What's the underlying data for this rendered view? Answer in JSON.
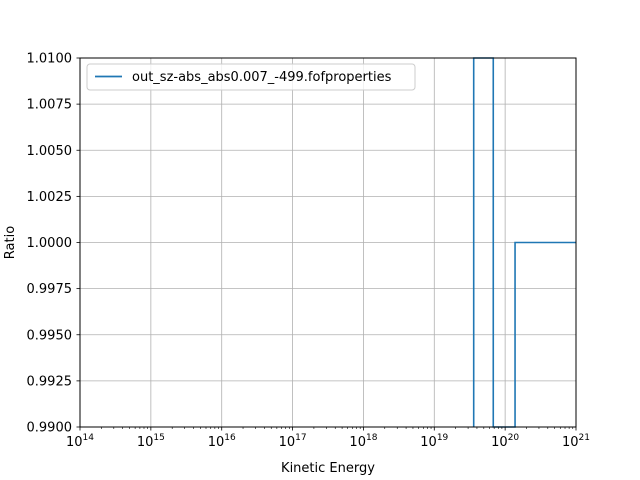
{
  "chart_data": {
    "type": "line",
    "title": "",
    "xlabel": "Kinetic Energy",
    "ylabel": "Ratio",
    "xscale": "log",
    "xlim": [
      100000000000000.0,
      1e+21
    ],
    "ylim": [
      0.99,
      1.01
    ],
    "grid": true,
    "legend_position": "top-left",
    "x_ticks": [
      {
        "value": 100000000000000.0,
        "base": "10",
        "exp": "14"
      },
      {
        "value": 1000000000000000.0,
        "base": "10",
        "exp": "15"
      },
      {
        "value": 1e+16,
        "base": "10",
        "exp": "16"
      },
      {
        "value": 1e+17,
        "base": "10",
        "exp": "17"
      },
      {
        "value": 1e+18,
        "base": "10",
        "exp": "18"
      },
      {
        "value": 1e+19,
        "base": "10",
        "exp": "19"
      },
      {
        "value": 1e+20,
        "base": "10",
        "exp": "20"
      },
      {
        "value": 1e+21,
        "base": "10",
        "exp": "21"
      }
    ],
    "y_ticks": [
      "0.9900",
      "0.9925",
      "0.9950",
      "0.9975",
      "1.0000",
      "1.0025",
      "1.0050",
      "1.0075",
      "1.0100"
    ],
    "series": [
      {
        "name": "out_sz-abs_abs0.007_-499.fofproperties",
        "color": "#1f77b4",
        "points": [
          {
            "x": 3.6e+19,
            "y": 0.99
          },
          {
            "x": 3.6e+19,
            "y": 1.01
          },
          {
            "x": 6.8e+19,
            "y": 1.01
          },
          {
            "x": 6.8e+19,
            "y": 0.99
          },
          {
            "x": 1.38e+20,
            "y": 0.99
          },
          {
            "x": 1.38e+20,
            "y": 1.0
          },
          {
            "x": 1e+21,
            "y": 1.0
          }
        ]
      }
    ]
  }
}
